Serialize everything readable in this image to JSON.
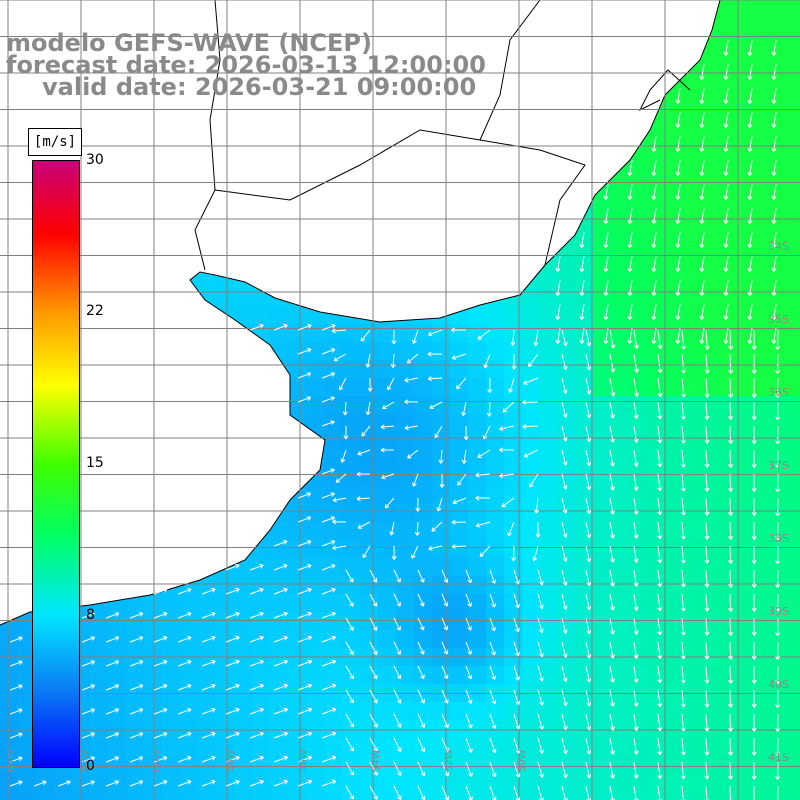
{
  "title": {
    "line1": "modelo GEFS-WAVE (NCEP)",
    "line2": "forecast date: 2026-03-13 12:00:00",
    "line3": "valid date: 2026-03-21 09:00:00"
  },
  "colorbar": {
    "unit": "[m/s]",
    "range": [
      0,
      30
    ],
    "ticks": [
      "30",
      "22",
      "15",
      "8",
      "0"
    ],
    "tick_values": [
      30,
      22,
      15,
      8,
      0
    ],
    "colors": [
      "#0000ff",
      "#0a7ff5",
      "#00e5ff",
      "#00ff66",
      "#40ff00",
      "#ffff00",
      "#ff9900",
      "#ff0000",
      "#c80078"
    ]
  },
  "map": {
    "lat_labels": [
      "34S",
      "35S",
      "36S",
      "37S",
      "38S",
      "39S",
      "40S",
      "41S"
    ],
    "lon_labels": [
      "64W",
      "62W",
      "60W",
      "58W",
      "56W",
      "54W",
      "52W",
      "50W"
    ],
    "grid_color": "#808080",
    "land_color": "#ffffff",
    "coast_color": "#000000"
  }
}
